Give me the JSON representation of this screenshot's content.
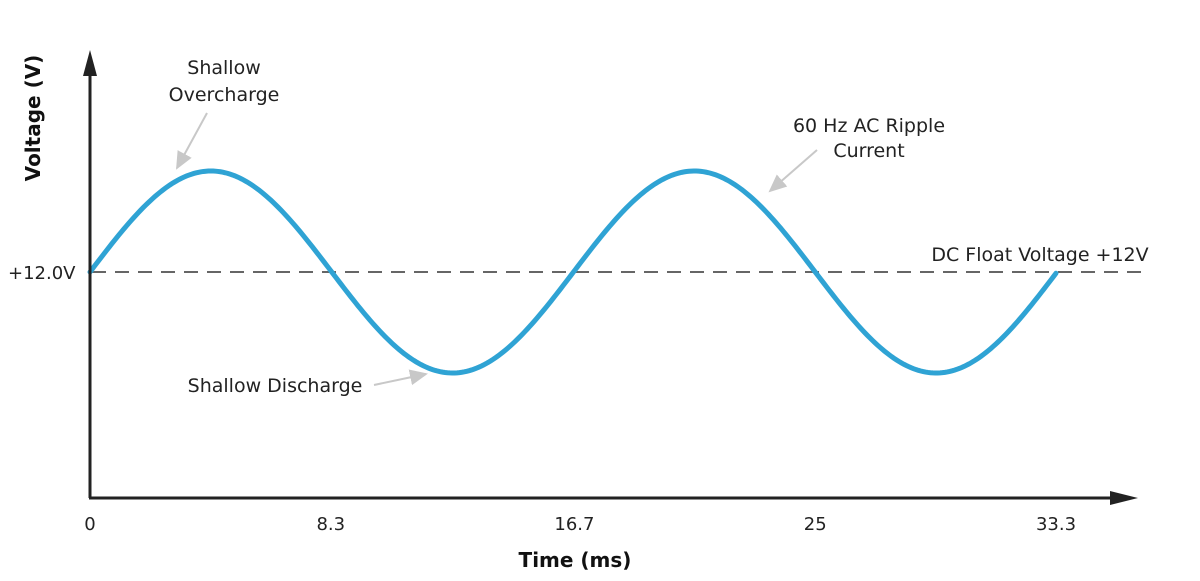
{
  "chart_data": {
    "type": "line",
    "title": "",
    "xlabel": "Time (ms)",
    "ylabel": "Voltage (V)",
    "x_ticks": [
      "0",
      "8.3",
      "16.7",
      "25",
      "33.3"
    ],
    "x_tick_values": [
      0,
      8.3,
      16.7,
      25,
      33.3
    ],
    "xlim": [
      0,
      33.3
    ],
    "y_ticks": [
      "+12.0V"
    ],
    "y_tick_values": [
      12.0
    ],
    "grid": false,
    "series": [
      {
        "shape": "sine",
        "frequency_hz": 60,
        "center_v": 12.0,
        "x_start": 0,
        "x_end": 33.3,
        "color": "#2fa3d4"
      }
    ],
    "reference_line": {
      "y": 12.0,
      "style": "dashed",
      "color": "#666666",
      "label": "DC Float Voltage +12V"
    },
    "annotations": [
      {
        "lines": [
          "Shallow",
          "Overcharge"
        ]
      },
      {
        "lines": [
          "60 Hz AC Ripple",
          "Current"
        ]
      },
      {
        "lines": [
          "Shallow Discharge"
        ]
      }
    ]
  }
}
